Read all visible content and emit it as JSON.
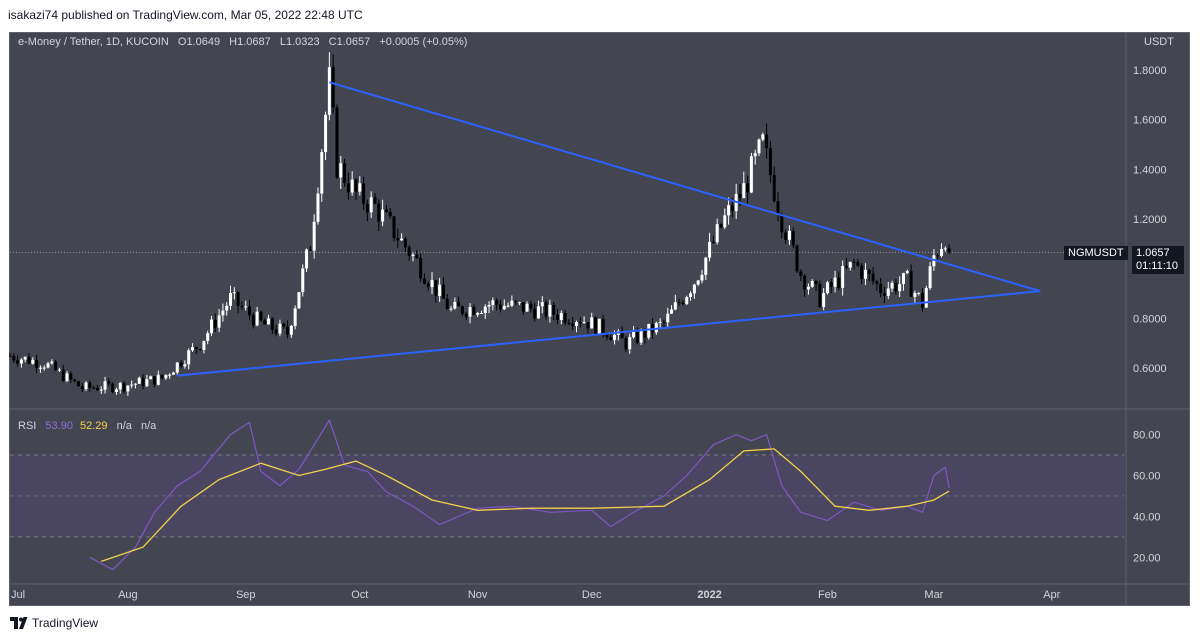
{
  "header": {
    "published": "isakazi74 published on TradingView.com, Mar 05, 2022 22:48 UTC"
  },
  "legend": {
    "symbol": "e-Money / Tether, 1D, KUCOIN",
    "O": "1.0649",
    "H": "1.0687",
    "L": "1.0323",
    "C": "1.0657",
    "change": "+0.0005 (+0.05%)"
  },
  "currency": "USDT",
  "badge": {
    "symbol": "NGMUSDT",
    "price": "1.0657",
    "countdown": "01:11:10"
  },
  "rsi_legend": {
    "name": "RSI",
    "rsi": "53.90",
    "ma": "52.29",
    "na1": "n/a",
    "na2": "n/a"
  },
  "footer": {
    "brand": "TradingView"
  },
  "colors": {
    "background": "#434651",
    "candle_up": "#ffffff",
    "candle_down": "#000000",
    "trendline": "#2962ff",
    "rsi": "#7e57c2",
    "rsi_ma": "#f3d24a",
    "rsi_band": "#4a4560"
  },
  "chart_data": [
    {
      "type": "candlestick",
      "title": "e-Money / Tether, 1D, KUCOIN",
      "ylabel": "USDT",
      "y_ticks": [
        "1.8000",
        "1.6000",
        "1.4000",
        "1.2000",
        "0.8000",
        "0.6000"
      ],
      "x_ticks": [
        "Jul",
        "Aug",
        "Sep",
        "Oct",
        "Nov",
        "Dec",
        "2022",
        "Feb",
        "Mar",
        "Apr"
      ],
      "ylim": [
        0.44,
        1.92
      ],
      "x_range": [
        "2021-07-01",
        "2022-04-20"
      ],
      "current_price": 1.0657,
      "series": [
        {
          "date": "2021-07-01",
          "close": 0.65
        },
        {
          "date": "2021-07-10",
          "close": 0.62
        },
        {
          "date": "2021-07-20",
          "close": 0.52
        },
        {
          "date": "2021-07-31",
          "close": 0.53
        },
        {
          "date": "2021-08-10",
          "close": 0.56
        },
        {
          "date": "2021-08-20",
          "close": 0.7
        },
        {
          "date": "2021-08-28",
          "close": 0.88
        },
        {
          "date": "2021-09-05",
          "close": 0.78
        },
        {
          "date": "2021-09-12",
          "close": 0.74
        },
        {
          "date": "2021-09-18",
          "close": 1.1
        },
        {
          "date": "2021-09-23",
          "close": 1.75
        },
        {
          "date": "2021-09-25",
          "close": 1.42
        },
        {
          "date": "2021-09-30",
          "close": 1.3
        },
        {
          "date": "2021-10-05",
          "close": 1.25
        },
        {
          "date": "2021-10-15",
          "close": 1.05
        },
        {
          "date": "2021-10-25",
          "close": 0.83
        },
        {
          "date": "2021-11-05",
          "close": 0.86
        },
        {
          "date": "2021-11-15",
          "close": 0.84
        },
        {
          "date": "2021-11-28",
          "close": 0.8
        },
        {
          "date": "2021-12-05",
          "close": 0.75
        },
        {
          "date": "2021-12-10",
          "close": 0.7
        },
        {
          "date": "2021-12-20",
          "close": 0.78
        },
        {
          "date": "2021-12-28",
          "close": 0.95
        },
        {
          "date": "2022-01-05",
          "close": 1.2
        },
        {
          "date": "2022-01-10",
          "close": 1.32
        },
        {
          "date": "2022-01-15",
          "close": 1.5
        },
        {
          "date": "2022-01-20",
          "close": 1.2
        },
        {
          "date": "2022-01-25",
          "close": 0.98
        },
        {
          "date": "2022-01-30",
          "close": 0.88
        },
        {
          "date": "2022-02-08",
          "close": 1.02
        },
        {
          "date": "2022-02-15",
          "close": 0.92
        },
        {
          "date": "2022-02-22",
          "close": 0.95
        },
        {
          "date": "2022-02-26",
          "close": 0.86
        },
        {
          "date": "2022-03-01",
          "close": 1.05
        },
        {
          "date": "2022-03-04",
          "close": 1.13
        },
        {
          "date": "2022-03-05",
          "close": 1.0657
        }
      ],
      "trendlines": [
        {
          "name": "descending resistance",
          "from": [
            "2021-09-23",
            1.75
          ],
          "to": [
            "2022-03-29",
            0.91
          ]
        },
        {
          "name": "ascending support",
          "from": [
            "2021-08-14",
            0.57
          ],
          "to": [
            "2022-03-29",
            0.91
          ]
        }
      ]
    },
    {
      "type": "line",
      "title": "RSI",
      "y_ticks": [
        "80.00",
        "60.00",
        "40.00",
        "20.00"
      ],
      "ylim": [
        5,
        92
      ],
      "bands": [
        30,
        70
      ],
      "series": [
        {
          "name": "RSI",
          "color": "#7e57c2",
          "points": [
            [
              "2021-07-22",
              20
            ],
            [
              "2021-07-28",
              14
            ],
            [
              "2021-08-03",
              25
            ],
            [
              "2021-08-08",
              42
            ],
            [
              "2021-08-14",
              55
            ],
            [
              "2021-08-20",
              62
            ],
            [
              "2021-08-28",
              80
            ],
            [
              "2021-09-02",
              86
            ],
            [
              "2021-09-05",
              62
            ],
            [
              "2021-09-10",
              55
            ],
            [
              "2021-09-15",
              63
            ],
            [
              "2021-09-20",
              78
            ],
            [
              "2021-09-23",
              87
            ],
            [
              "2021-09-27",
              65
            ],
            [
              "2021-10-03",
              62
            ],
            [
              "2021-10-08",
              52
            ],
            [
              "2021-10-15",
              45
            ],
            [
              "2021-10-22",
              36
            ],
            [
              "2021-11-01",
              44
            ],
            [
              "2021-11-10",
              45
            ],
            [
              "2021-11-20",
              42
            ],
            [
              "2021-12-01",
              43
            ],
            [
              "2021-12-06",
              35
            ],
            [
              "2021-12-12",
              42
            ],
            [
              "2021-12-20",
              50
            ],
            [
              "2021-12-26",
              60
            ],
            [
              "2022-01-02",
              75
            ],
            [
              "2022-01-08",
              80
            ],
            [
              "2022-01-12",
              77
            ],
            [
              "2022-01-16",
              80
            ],
            [
              "2022-01-20",
              55
            ],
            [
              "2022-01-25",
              42
            ],
            [
              "2022-02-01",
              38
            ],
            [
              "2022-02-08",
              47
            ],
            [
              "2022-02-15",
              43
            ],
            [
              "2022-02-22",
              45
            ],
            [
              "2022-02-26",
              42
            ],
            [
              "2022-03-01",
              60
            ],
            [
              "2022-03-04",
              64
            ],
            [
              "2022-03-05",
              53.9
            ]
          ]
        },
        {
          "name": "RSI-based MA",
          "color": "#f3d24a",
          "points": [
            [
              "2021-07-25",
              18
            ],
            [
              "2021-08-05",
              25
            ],
            [
              "2021-08-15",
              45
            ],
            [
              "2021-08-25",
              58
            ],
            [
              "2021-09-05",
              66
            ],
            [
              "2021-09-15",
              60
            ],
            [
              "2021-09-22",
              63
            ],
            [
              "2021-09-30",
              67
            ],
            [
              "2021-10-08",
              60
            ],
            [
              "2021-10-20",
              48
            ],
            [
              "2021-11-01",
              43
            ],
            [
              "2021-11-15",
              44
            ],
            [
              "2021-12-01",
              44
            ],
            [
              "2021-12-20",
              45
            ],
            [
              "2022-01-01",
              58
            ],
            [
              "2022-01-10",
              72
            ],
            [
              "2022-01-18",
              73
            ],
            [
              "2022-01-25",
              62
            ],
            [
              "2022-02-03",
              45
            ],
            [
              "2022-02-12",
              43
            ],
            [
              "2022-02-22",
              45
            ],
            [
              "2022-03-01",
              48
            ],
            [
              "2022-03-05",
              52.29
            ]
          ]
        }
      ]
    }
  ]
}
